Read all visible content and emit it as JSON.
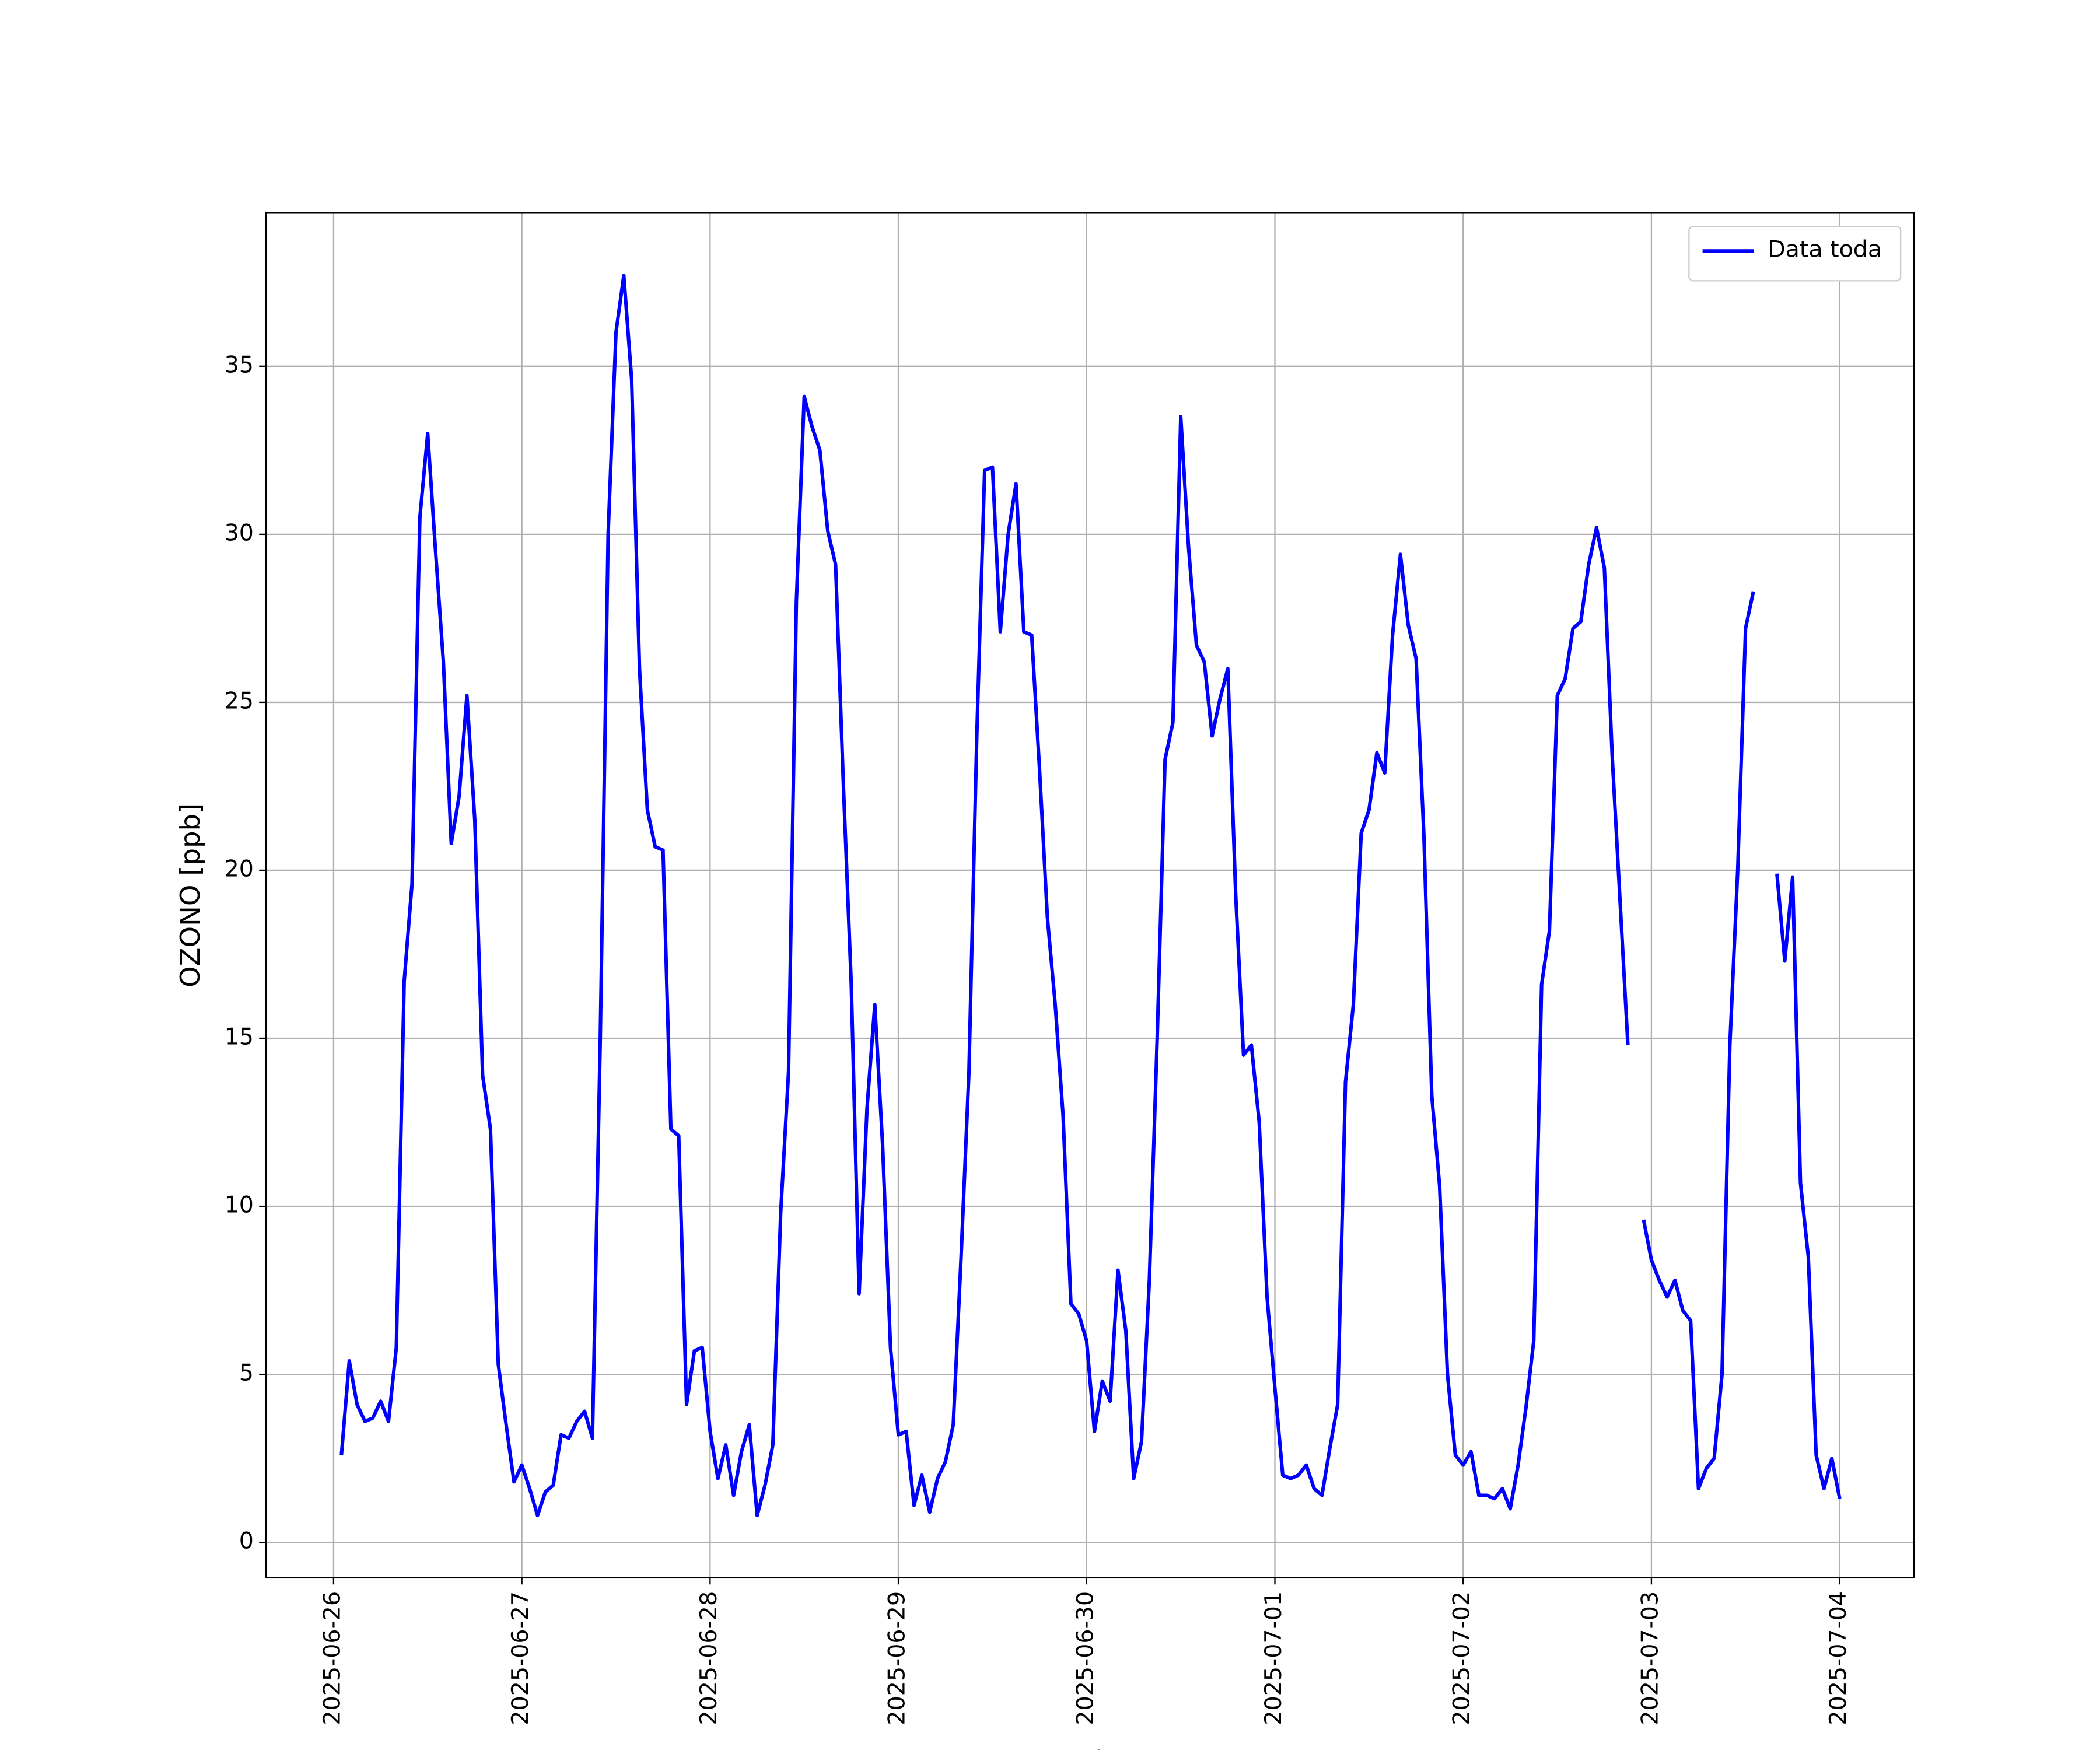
{
  "chart_data": {
    "type": "line",
    "xlabel": "Fecha",
    "ylabel": "OZONO [ppb]",
    "x": [
      "2025-06-26 01:00",
      "2025-06-26 02:00",
      "2025-06-26 03:00",
      "2025-06-26 04:00",
      "2025-06-26 05:00",
      "2025-06-26 06:00",
      "2025-06-26 07:00",
      "2025-06-26 08:00",
      "2025-06-26 09:00",
      "2025-06-26 10:00",
      "2025-06-26 11:00",
      "2025-06-26 12:00",
      "2025-06-26 13:00",
      "2025-06-26 14:00",
      "2025-06-26 15:00",
      "2025-06-26 16:00",
      "2025-06-26 17:00",
      "2025-06-26 18:00",
      "2025-06-26 19:00",
      "2025-06-26 20:00",
      "2025-06-26 21:00",
      "2025-06-26 22:00",
      "2025-06-26 23:00",
      "2025-06-27 00:00",
      "2025-06-27 01:00",
      "2025-06-27 02:00",
      "2025-06-27 03:00",
      "2025-06-27 04:00",
      "2025-06-27 05:00",
      "2025-06-27 06:00",
      "2025-06-27 07:00",
      "2025-06-27 08:00",
      "2025-06-27 09:00",
      "2025-06-27 10:00",
      "2025-06-27 11:00",
      "2025-06-27 12:00",
      "2025-06-27 13:00",
      "2025-06-27 14:00",
      "2025-06-27 15:00",
      "2025-06-27 16:00",
      "2025-06-27 17:00",
      "2025-06-27 18:00",
      "2025-06-27 19:00",
      "2025-06-27 20:00",
      "2025-06-27 21:00",
      "2025-06-27 22:00",
      "2025-06-27 23:00",
      "2025-06-28 00:00",
      "2025-06-28 01:00",
      "2025-06-28 02:00",
      "2025-06-28 03:00",
      "2025-06-28 04:00",
      "2025-06-28 05:00",
      "2025-06-28 06:00",
      "2025-06-28 07:00",
      "2025-06-28 08:00",
      "2025-06-28 09:00",
      "2025-06-28 10:00",
      "2025-06-28 11:00",
      "2025-06-28 12:00",
      "2025-06-28 13:00",
      "2025-06-28 14:00",
      "2025-06-28 15:00",
      "2025-06-28 16:00",
      "2025-06-28 17:00",
      "2025-06-28 18:00",
      "2025-06-28 19:00",
      "2025-06-28 20:00",
      "2025-06-28 21:00",
      "2025-06-28 22:00",
      "2025-06-28 23:00",
      "2025-06-29 00:00",
      "2025-06-29 01:00",
      "2025-06-29 02:00",
      "2025-06-29 03:00",
      "2025-06-29 04:00",
      "2025-06-29 05:00",
      "2025-06-29 06:00",
      "2025-06-29 07:00",
      "2025-06-29 08:00",
      "2025-06-29 09:00",
      "2025-06-29 10:00",
      "2025-06-29 11:00",
      "2025-06-29 12:00",
      "2025-06-29 13:00",
      "2025-06-29 14:00",
      "2025-06-29 15:00",
      "2025-06-29 16:00",
      "2025-06-29 17:00",
      "2025-06-29 18:00",
      "2025-06-29 19:00",
      "2025-06-29 20:00",
      "2025-06-29 21:00",
      "2025-06-29 22:00",
      "2025-06-29 23:00",
      "2025-06-30 00:00",
      "2025-06-30 01:00",
      "2025-06-30 02:00",
      "2025-06-30 03:00",
      "2025-06-30 04:00",
      "2025-06-30 05:00",
      "2025-06-30 06:00",
      "2025-06-30 07:00",
      "2025-06-30 08:00",
      "2025-06-30 09:00",
      "2025-06-30 10:00",
      "2025-06-30 11:00",
      "2025-06-30 12:00",
      "2025-06-30 13:00",
      "2025-06-30 14:00",
      "2025-06-30 15:00",
      "2025-06-30 16:00",
      "2025-06-30 17:00",
      "2025-06-30 18:00",
      "2025-06-30 19:00",
      "2025-06-30 20:00",
      "2025-06-30 21:00",
      "2025-06-30 22:00",
      "2025-06-30 23:00",
      "2025-07-01 00:00",
      "2025-07-01 01:00",
      "2025-07-01 02:00",
      "2025-07-01 03:00",
      "2025-07-01 04:00",
      "2025-07-01 05:00",
      "2025-07-01 06:00",
      "2025-07-01 07:00",
      "2025-07-01 08:00",
      "2025-07-01 09:00",
      "2025-07-01 10:00",
      "2025-07-01 11:00",
      "2025-07-01 12:00",
      "2025-07-01 13:00",
      "2025-07-01 14:00",
      "2025-07-01 15:00",
      "2025-07-01 16:00",
      "2025-07-01 17:00",
      "2025-07-01 18:00",
      "2025-07-01 19:00",
      "2025-07-01 20:00",
      "2025-07-01 21:00",
      "2025-07-01 22:00",
      "2025-07-01 23:00",
      "2025-07-02 00:00",
      "2025-07-02 01:00",
      "2025-07-02 02:00",
      "2025-07-02 03:00",
      "2025-07-02 04:00",
      "2025-07-02 05:00",
      "2025-07-02 06:00",
      "2025-07-02 07:00",
      "2025-07-02 08:00",
      "2025-07-02 09:00",
      "2025-07-02 10:00",
      "2025-07-02 11:00",
      "2025-07-02 12:00",
      "2025-07-02 13:00",
      "2025-07-02 14:00",
      "2025-07-02 15:00",
      "2025-07-02 16:00",
      "2025-07-02 17:00",
      "2025-07-02 18:00",
      "2025-07-02 19:00",
      "2025-07-02 20:00",
      "2025-07-02 21:00",
      "2025-07-02 22:00",
      "2025-07-02 23:00",
      "2025-07-03 00:00",
      "2025-07-03 01:00",
      "2025-07-03 02:00",
      "2025-07-03 03:00",
      "2025-07-03 04:00",
      "2025-07-03 05:00",
      "2025-07-03 06:00",
      "2025-07-03 07:00",
      "2025-07-03 08:00",
      "2025-07-03 09:00",
      "2025-07-03 10:00",
      "2025-07-03 11:00",
      "2025-07-03 12:00",
      "2025-07-03 13:00",
      "2025-07-03 14:00",
      "2025-07-03 15:00",
      "2025-07-03 16:00",
      "2025-07-03 17:00",
      "2025-07-03 18:00",
      "2025-07-03 19:00",
      "2025-07-03 20:00",
      "2025-07-03 21:00",
      "2025-07-03 22:00",
      "2025-07-03 23:00",
      "2025-07-04 00:00"
    ],
    "series": [
      {
        "name": "Data toda",
        "color": "#0000ff",
        "values": [
          2.6,
          5.4,
          4.1,
          3.6,
          3.7,
          4.2,
          3.6,
          5.8,
          16.7,
          19.6,
          30.5,
          33.0,
          29.5,
          26.2,
          20.8,
          22.2,
          25.2,
          21.5,
          13.9,
          12.3,
          5.3,
          3.5,
          1.8,
          2.3,
          1.6,
          0.8,
          1.5,
          1.7,
          3.2,
          3.1,
          3.6,
          3.9,
          3.1,
          15.0,
          30.0,
          36.0,
          37.7,
          34.6,
          26.0,
          21.8,
          20.7,
          20.6,
          12.3,
          12.1,
          4.1,
          5.7,
          5.8,
          3.3,
          1.9,
          2.9,
          1.4,
          2.7,
          3.5,
          0.8,
          1.7,
          2.9,
          9.8,
          14.0,
          28.0,
          34.1,
          33.2,
          32.5,
          30.1,
          29.1,
          22.5,
          16.6,
          7.4,
          12.9,
          16.0,
          11.8,
          5.8,
          3.2,
          3.3,
          1.1,
          2.0,
          0.9,
          1.9,
          2.4,
          3.5,
          8.5,
          14.0,
          24.0,
          31.9,
          32.0,
          27.1,
          30.0,
          31.5,
          27.1,
          27.0,
          23.0,
          18.6,
          16.0,
          12.7,
          7.1,
          6.8,
          6.0,
          3.3,
          4.8,
          4.2,
          8.1,
          6.3,
          1.9,
          3.0,
          7.8,
          15.0,
          23.3,
          24.4,
          33.5,
          29.6,
          26.7,
          26.2,
          24.0,
          25.1,
          26.0,
          19.3,
          14.5,
          14.8,
          12.5,
          7.3,
          4.6,
          2.0,
          1.9,
          2.0,
          2.3,
          1.6,
          1.4,
          2.8,
          4.1,
          13.7,
          16.0,
          21.1,
          21.8,
          23.5,
          22.9,
          27.0,
          29.4,
          27.3,
          26.3,
          21.0,
          13.3,
          10.6,
          5.0,
          2.6,
          2.3,
          2.7,
          1.4,
          1.4,
          1.3,
          1.6,
          1.0,
          2.3,
          4.0,
          6.0,
          16.6,
          18.2,
          25.2,
          25.7,
          27.2,
          27.4,
          29.1,
          30.2,
          29.0,
          23.4,
          19.1,
          14.8,
          null,
          9.6,
          8.4,
          7.8,
          7.3,
          7.8,
          6.9,
          6.6,
          1.6,
          2.2,
          2.5,
          5.0,
          14.8,
          20.0,
          27.2,
          28.3,
          null,
          null,
          19.9,
          17.3,
          19.8,
          10.7,
          8.5,
          2.6,
          1.6,
          2.5,
          1.3
        ]
      }
    ],
    "xlim": [
      "2025-06-25 15:22",
      "2025-07-04 09:30"
    ],
    "xticks": [
      "2025-06-26",
      "2025-06-27",
      "2025-06-28",
      "2025-06-29",
      "2025-06-30",
      "2025-07-01",
      "2025-07-02",
      "2025-07-03",
      "2025-07-04"
    ],
    "ylim": [
      -1.05,
      39.56
    ],
    "yticks": [
      0,
      5,
      10,
      15,
      20,
      25,
      30,
      35
    ],
    "grid": true,
    "legend": "upper right"
  }
}
